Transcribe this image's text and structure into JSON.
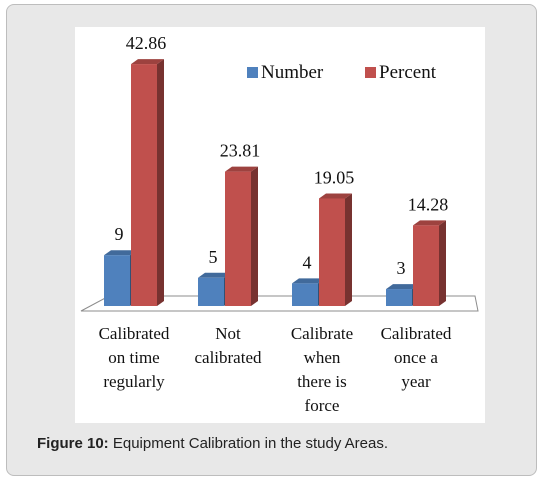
{
  "figure": {
    "caption_label": "Figure 10:",
    "caption_text": " Equipment Calibration in the study Areas."
  },
  "chart_data": {
    "type": "bar",
    "categories": [
      [
        "Calibrated",
        "on time",
        "regularly"
      ],
      [
        "Not",
        "calibrated"
      ],
      [
        "Calibrate",
        "when",
        "there is",
        "force"
      ],
      [
        "Calibrated",
        "once a",
        "year"
      ]
    ],
    "series": [
      {
        "name": "Number",
        "values": [
          9,
          5,
          4,
          3
        ],
        "labels": [
          "9",
          "5",
          "4",
          "3"
        ],
        "color": "#4f81bd"
      },
      {
        "name": "Percent",
        "values": [
          42.86,
          23.81,
          19.05,
          14.28
        ],
        "labels": [
          "42.86",
          "23.81",
          "19.05",
          "14.28"
        ],
        "color": "#c0504d"
      }
    ],
    "ylim": [
      0,
      45
    ],
    "grid": false,
    "legend": "top-right",
    "style": "3d-column"
  }
}
